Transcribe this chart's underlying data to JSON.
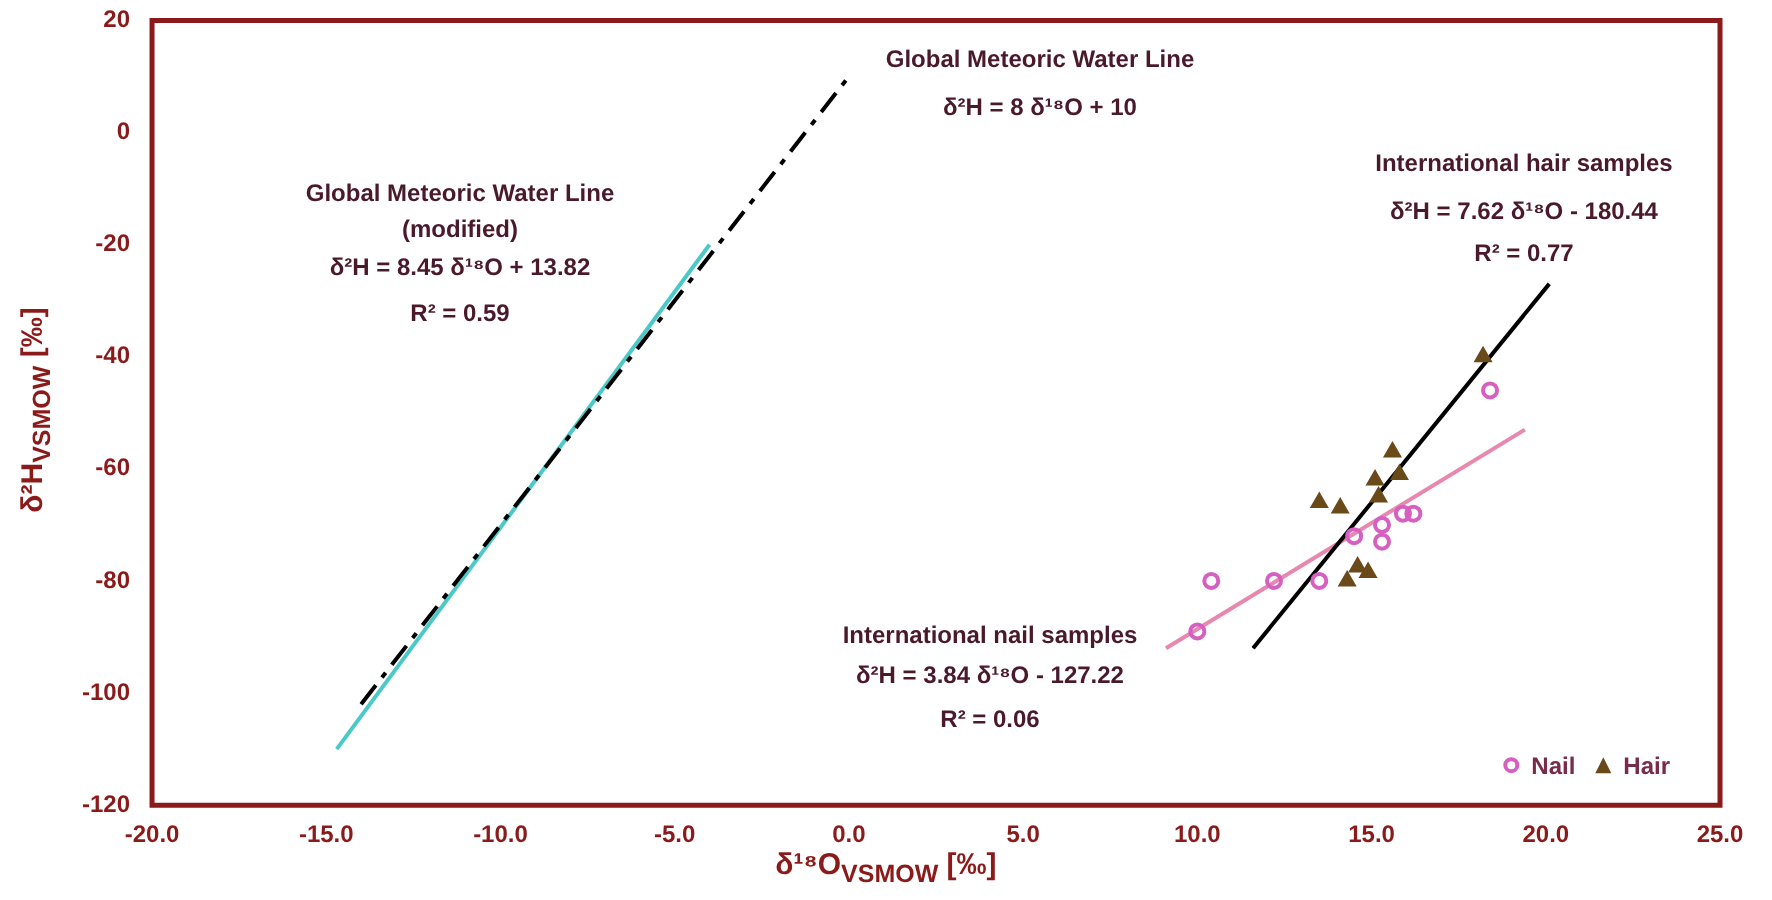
{
  "chart_data": {
    "type": "scatter",
    "xlabel": "δ¹⁸O$_{VSMOW}$ [‰]",
    "ylabel": "δ²H$_{VSMOW}$ [‰]",
    "xlim": [
      -20,
      25
    ],
    "ylim": [
      -120,
      20
    ],
    "xticks": [
      {
        "value": -20,
        "label": "-20.0"
      },
      {
        "value": -15,
        "label": "-15.0"
      },
      {
        "value": -10,
        "label": "-10.0"
      },
      {
        "value": -5,
        "label": "-5.0"
      },
      {
        "value": 0,
        "label": "0.0"
      },
      {
        "value": 5,
        "label": "5.0"
      },
      {
        "value": 10,
        "label": "10.0"
      },
      {
        "value": 15,
        "label": "15.0"
      },
      {
        "value": 20,
        "label": "20.0"
      },
      {
        "value": 25,
        "label": "25.0"
      }
    ],
    "yticks": [
      -120,
      -100,
      -80,
      -60,
      -40,
      -20,
      0,
      20
    ],
    "grid": false,
    "legend": "bottom right",
    "series": [
      {
        "name": "Nail",
        "marker": "circle",
        "color": "#d660c0",
        "x": [
          10.4,
          12.2,
          13.5,
          10.0,
          14.5,
          15.3,
          15.3,
          15.9,
          16.2,
          18.4
        ],
        "values": [
          -80,
          -80,
          -80,
          -89,
          -72,
          -70,
          -73,
          -68,
          -68,
          -46
        ]
      },
      {
        "name": "Hair",
        "marker": "triangle",
        "color": "#6b4a1a",
        "x": [
          13.5,
          14.1,
          15.1,
          15.6,
          15.8,
          15.2,
          14.3,
          14.6,
          14.9,
          18.2
        ],
        "values": [
          -66,
          -67,
          -62,
          -57,
          -61,
          -65,
          -80,
          -77.5,
          -78.5,
          -40
        ]
      },
      {
        "type": "line",
        "marker": "none",
        "line_style": "dashed",
        "color": "#000000",
        "x": [
          -14,
          0
        ],
        "values": [
          -102,
          10
        ]
      },
      {
        "type": "line",
        "marker": "none",
        "line_style": "solid",
        "color": "#4cc8c8",
        "x": [
          -14.7,
          -4.0
        ],
        "values": [
          -110,
          -20
        ]
      },
      {
        "type": "line",
        "marker": "none",
        "line_style": "solid",
        "color": "#000000",
        "x": [
          11.6,
          20.1
        ],
        "values": [
          -92,
          -27
        ]
      },
      {
        "type": "line",
        "marker": "none",
        "line_style": "solid",
        "color": "#e888b0",
        "x": [
          9.1,
          19.4
        ],
        "values": [
          -92,
          -53
        ]
      }
    ],
    "annotations": [
      "Global Meteoric Water Line",
      "δ²H = 8 δ¹⁸O + 10",
      "Global Meteoric Water Line",
      "(modified)",
      "δ²H = 8.45 δ¹⁸O + 13.82",
      "R² = 0.59",
      "International hair samples",
      "δ²H = 7.62 δ¹⁸O - 180.44",
      "R² = 0.77",
      "International nail samples",
      "δ²H = 3.84 δ¹⁸O - 127.22",
      "R² = 0.06"
    ]
  }
}
